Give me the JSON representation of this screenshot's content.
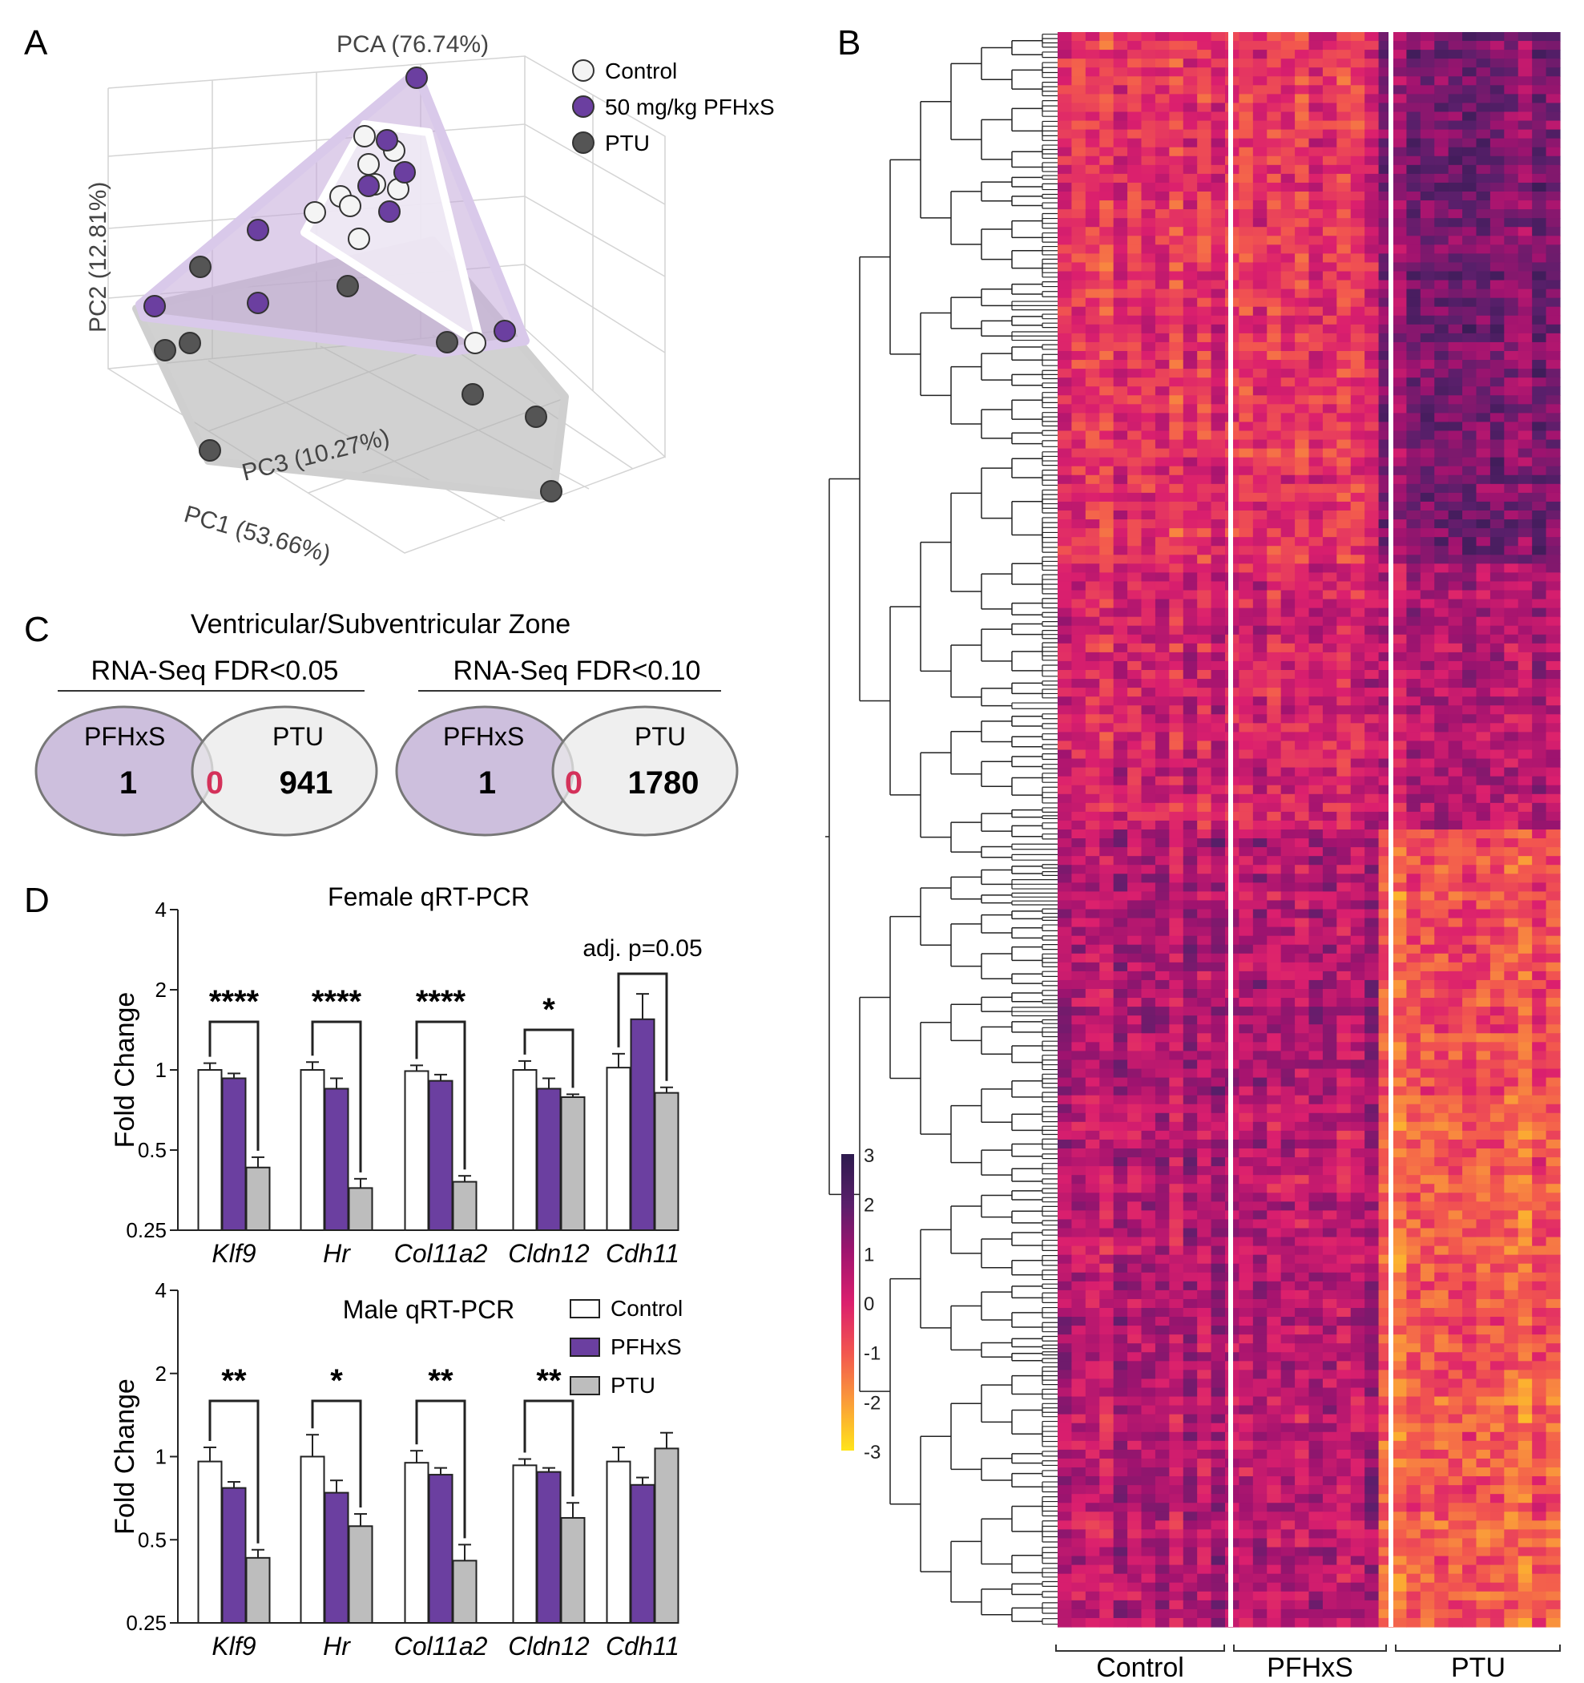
{
  "panels": {
    "a": "A",
    "b": "B",
    "c": "C",
    "d": "D"
  },
  "colors": {
    "control": "#f4f4f4",
    "pfhxs": "#6b3fa0",
    "ptu": "#555555",
    "ptu_bar": "#bdbdbd",
    "pfhxs_hull": "#c9b4dc",
    "ptu_hull": "#bcbcbc",
    "zero_text": "#d4315a",
    "venn_pfhxs": "#cdbfdd",
    "venn_ptu": "#e9e9e9"
  },
  "pca": {
    "title": "PCA (76.74%)",
    "pc1_label": "PC1 (53.66%)",
    "pc2_label": "PC2 (12.81%)",
    "pc3_label": "PC3 (10.27%)",
    "legend": [
      "Control",
      "50 mg/kg PFHxS",
      "PTU"
    ]
  },
  "heatmap": {
    "groups": [
      "Control",
      "PFHxS",
      "PTU"
    ],
    "colorbar_ticks": [
      "3",
      "2",
      "1",
      "0",
      "-1",
      "-2",
      "-3"
    ],
    "value_range": [
      -3,
      3
    ]
  },
  "venn": {
    "title": "Ventricular/Subventricular Zone",
    "left": {
      "header": "RNA-Seq FDR<0.05",
      "a_label": "PFHxS",
      "b_label": "PTU",
      "a_only": "1",
      "overlap": "0",
      "b_only": "941"
    },
    "right": {
      "header": "RNA-Seq FDR<0.10",
      "a_label": "PFHxS",
      "b_label": "PTU",
      "a_only": "1",
      "overlap": "0",
      "b_only": "1780"
    }
  },
  "chart_data": [
    {
      "type": "bar",
      "title": "Female qRT-PCR",
      "ylabel": "Fold Change",
      "yscale": "log2",
      "ylim": [
        0.25,
        4
      ],
      "yticks": [
        "4",
        "2",
        "1",
        "0.5",
        "0.25"
      ],
      "categories": [
        "Klf9",
        "Hr",
        "Col11a2",
        "Cldn12",
        "Cdh11"
      ],
      "series": [
        {
          "name": "Control",
          "values": [
            1.0,
            1.0,
            0.99,
            1.0,
            1.02
          ],
          "errors": [
            0.06,
            0.07,
            0.05,
            0.08,
            0.13
          ]
        },
        {
          "name": "PFHxS",
          "values": [
            0.93,
            0.85,
            0.91,
            0.85,
            1.55
          ],
          "errors": [
            0.04,
            0.08,
            0.05,
            0.08,
            0.38
          ]
        },
        {
          "name": "PTU",
          "values": [
            0.43,
            0.36,
            0.38,
            0.79,
            0.82
          ],
          "errors": [
            0.04,
            0.03,
            0.02,
            0.02,
            0.04
          ]
        }
      ],
      "significance": [
        "****",
        "****",
        "****",
        "*",
        "adj. p=0.05"
      ]
    },
    {
      "type": "bar",
      "title": "Male qRT-PCR",
      "ylabel": "Fold Change",
      "yscale": "log2",
      "ylim": [
        0.25,
        4
      ],
      "yticks": [
        "4",
        "2",
        "1",
        "0.5",
        "0.25"
      ],
      "categories": [
        "Klf9",
        "Hr",
        "Col11a2",
        "Cldn12",
        "Cdh11"
      ],
      "legend": [
        "Control",
        "PFHxS",
        "PTU"
      ],
      "series": [
        {
          "name": "Control",
          "values": [
            0.96,
            1.0,
            0.95,
            0.93,
            0.96
          ],
          "errors": [
            0.12,
            0.2,
            0.1,
            0.05,
            0.12
          ]
        },
        {
          "name": "PFHxS",
          "values": [
            0.77,
            0.74,
            0.86,
            0.88,
            0.79
          ],
          "errors": [
            0.04,
            0.08,
            0.05,
            0.03,
            0.05
          ]
        },
        {
          "name": "PTU",
          "values": [
            0.43,
            0.56,
            0.42,
            0.6,
            1.07
          ],
          "errors": [
            0.03,
            0.06,
            0.06,
            0.08,
            0.15
          ]
        }
      ],
      "significance": [
        "**",
        "*",
        "**",
        "**",
        ""
      ]
    }
  ]
}
